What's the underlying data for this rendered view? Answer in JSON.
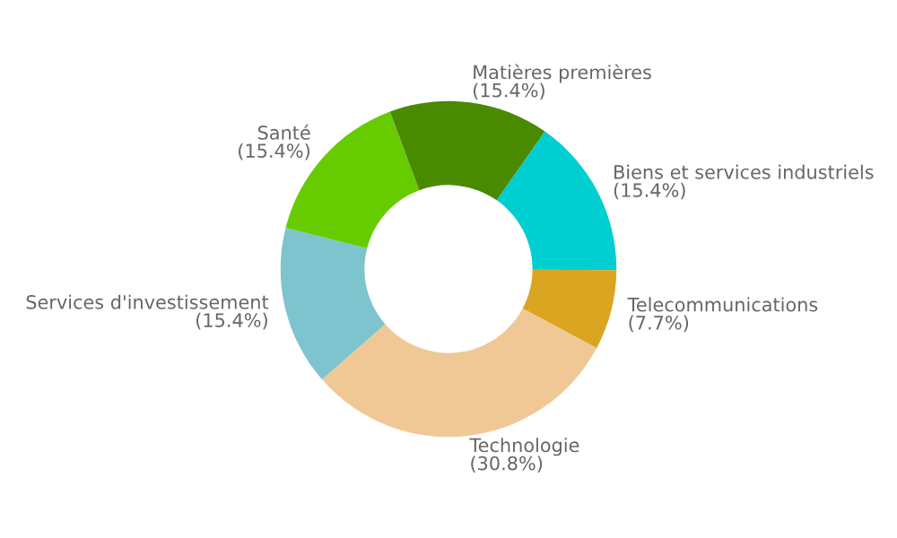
{
  "chart_data": {
    "type": "donut",
    "categories": [
      "Biens et services industriels",
      "Telecommunications",
      "Technologie",
      "Services d'investissement",
      "Santé",
      "Matières premières"
    ],
    "values": [
      15.4,
      7.7,
      30.8,
      15.4,
      15.4,
      15.4
    ],
    "value_labels": [
      "(15.4%)",
      "(7.7%)",
      "(30.8%)",
      "(15.4%)",
      "(15.4%)",
      "(15.4%)"
    ],
    "colors": [
      "#00ced1",
      "#daa520",
      "#f0c896",
      "#7ec4cf",
      "#66cc00",
      "#4a8a00"
    ],
    "legend": false
  }
}
